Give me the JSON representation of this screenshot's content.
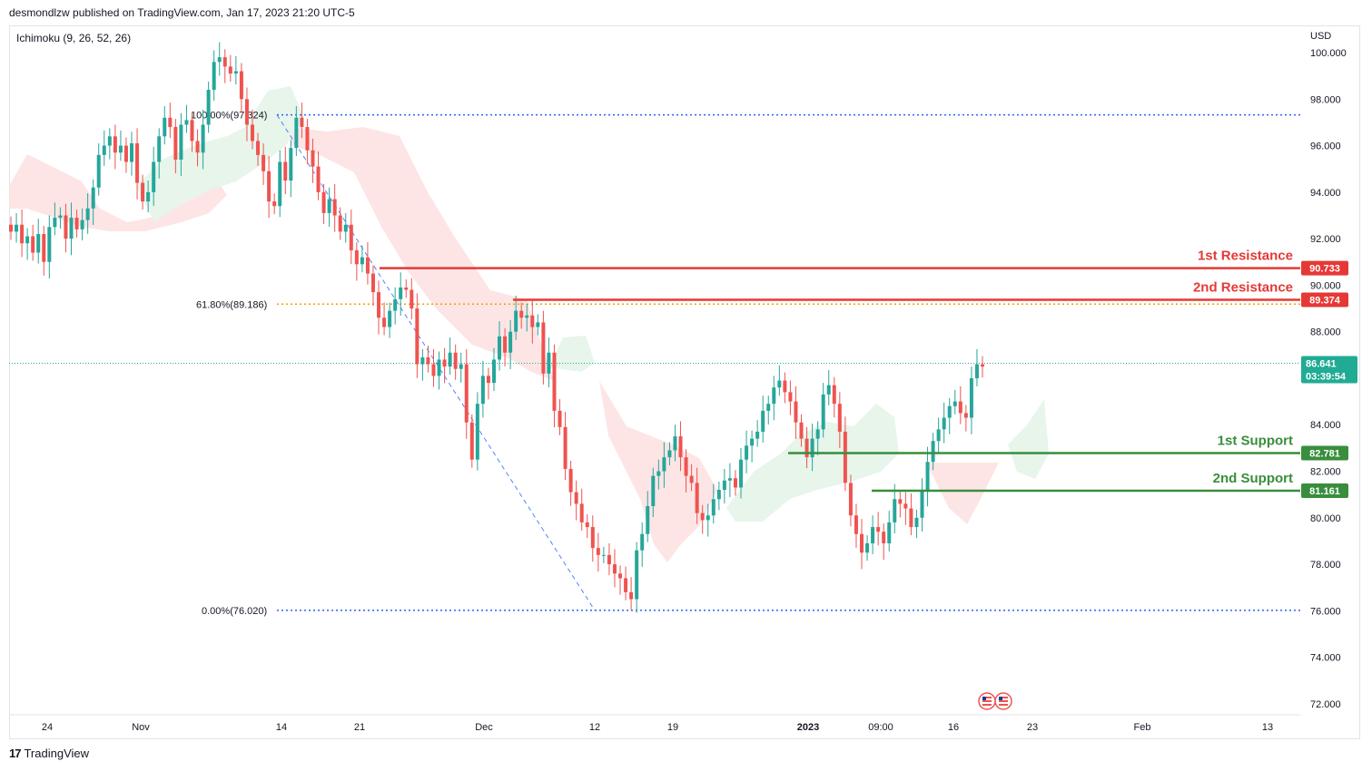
{
  "header": {
    "publisher": "desmondlzw published on TradingView.com, Jan 17, 2023 21:20 UTC-5"
  },
  "indicator": {
    "label": "Ichimoku (9, 26, 52, 26)"
  },
  "currency": "USD",
  "brand": {
    "logo": "17",
    "name": "TradingView"
  },
  "colors": {
    "up": "#26a69a",
    "down": "#ef5350",
    "resistance": "#e53935",
    "support": "#388e3c",
    "fib": "#2962ff",
    "fib618": "#f59f00",
    "price": "#22ab94",
    "cloud_red": "#fde0e0",
    "cloud_green": "#e6f4ea"
  },
  "chart_data": {
    "type": "candlestick",
    "ylim": [
      71.5,
      101.0
    ],
    "y_ticks": [
      "100.000",
      "98.000",
      "96.000",
      "94.000",
      "92.000",
      "90.000",
      "88.000",
      "84.000",
      "82.000",
      "80.000",
      "78.000",
      "76.000",
      "74.000",
      "72.000"
    ],
    "x_ticks": [
      "24",
      "Nov",
      "14",
      "21",
      "Dec",
      "12",
      "19",
      "2023",
      "09:00",
      "16",
      "23",
      "Feb",
      "13"
    ],
    "last_price": {
      "value": "86.641",
      "countdown": "03:39:54",
      "level": 86.641
    },
    "levels": [
      {
        "name": "1st Resistance",
        "value": 90.733,
        "tag": "90.733",
        "kind": "resistance"
      },
      {
        "name": "2nd Resistance",
        "value": 89.374,
        "tag": "89.374",
        "kind": "resistance"
      },
      {
        "name": "1st Support",
        "value": 82.781,
        "tag": "82.781",
        "kind": "support"
      },
      {
        "name": "2nd Support",
        "value": 81.161,
        "tag": "81.161",
        "kind": "support"
      }
    ],
    "fib": [
      {
        "label": "100.00%(97.324)",
        "value": 97.324
      },
      {
        "label": "61.80%(89.186)",
        "value": 89.186
      },
      {
        "label": "0.00%(76.020)",
        "value": 76.02
      }
    ],
    "closes": [
      92.3,
      92.6,
      91.8,
      92.1,
      91.4,
      92.2,
      91.0,
      92.5,
      92.9,
      93.0,
      92.0,
      92.9,
      92.4,
      92.8,
      93.3,
      94.2,
      95.6,
      96.0,
      96.4,
      95.7,
      96.0,
      95.3,
      96.1,
      94.4,
      93.6,
      94.0,
      95.3,
      96.4,
      97.2,
      96.8,
      95.4,
      96.9,
      97.1,
      96.2,
      95.7,
      96.9,
      98.4,
      99.6,
      99.8,
      99.4,
      99.1,
      99.2,
      98.0,
      96.9,
      96.2,
      95.6,
      94.9,
      93.6,
      93.4,
      95.3,
      94.5,
      95.9,
      97.2,
      96.8,
      95.8,
      95.1,
      94.0,
      93.1,
      93.7,
      93.0,
      92.3,
      92.6,
      91.5,
      90.9,
      91.2,
      90.5,
      89.7,
      88.6,
      88.2,
      88.9,
      89.4,
      89.9,
      89.8,
      89.0,
      86.6,
      86.9,
      86.6,
      86.1,
      86.8,
      86.5,
      87.1,
      86.4,
      86.6,
      84.1,
      82.5,
      84.9,
      86.1,
      85.8,
      86.8,
      87.8,
      87.1,
      88.0,
      88.9,
      88.6,
      88.7,
      88.2,
      88.4,
      86.2,
      87.1,
      84.6,
      83.9,
      82.1,
      81.1,
      80.6,
      79.8,
      79.6,
      78.7,
      78.4,
      78.4,
      78.0,
      77.6,
      77.4,
      76.8,
      76.5,
      78.6,
      79.3,
      80.5,
      81.8,
      82.0,
      82.6,
      82.9,
      83.5,
      82.6,
      81.8,
      81.5,
      80.2,
      79.9,
      80.1,
      80.8,
      81.2,
      81.6,
      81.7,
      81.3,
      82.5,
      83.1,
      83.4,
      83.7,
      84.6,
      84.9,
      85.6,
      85.9,
      85.4,
      85.0,
      84.1,
      83.4,
      82.6,
      83.4,
      83.8,
      85.3,
      85.7,
      84.9,
      83.7,
      81.5,
      80.1,
      79.3,
      78.5,
      78.9,
      79.6,
      79.4,
      78.9,
      79.8,
      80.8,
      80.6,
      80.4,
      79.6,
      80.0,
      81.2,
      82.4,
      83.3,
      83.8,
      84.3,
      84.8,
      85.0,
      84.5,
      84.3,
      86.0,
      86.6,
      86.5
    ],
    "cloud_kumo": "shaded Ichimoku cloud (red = bearish, green = bullish)"
  }
}
